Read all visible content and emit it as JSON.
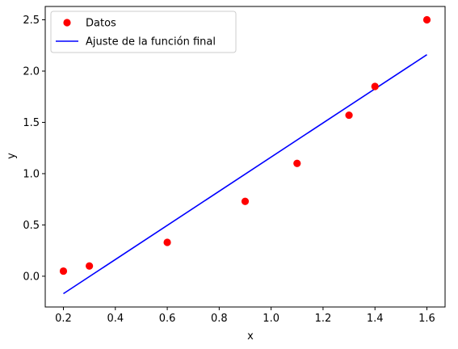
{
  "chart_data": {
    "type": "scatter",
    "xlabel": "x",
    "ylabel": "y",
    "xlim": [
      0.13,
      1.67
    ],
    "ylim": [
      -0.3,
      2.63
    ],
    "xticks": [
      0.2,
      0.4,
      0.6,
      0.8,
      1.0,
      1.2,
      1.4,
      1.6
    ],
    "xtick_labels": [
      "0.2",
      "0.4",
      "0.6",
      "0.8",
      "1.0",
      "1.2",
      "1.4",
      "1.6"
    ],
    "yticks": [
      0.0,
      0.5,
      1.0,
      1.5,
      2.0,
      2.5
    ],
    "ytick_labels": [
      "0.0",
      "0.5",
      "1.0",
      "1.5",
      "2.0",
      "2.5"
    ],
    "grid": false,
    "legend_position": "top-left",
    "series": [
      {
        "name": "Datos",
        "kind": "scatter",
        "color": "#ff0000",
        "x": [
          0.2,
          0.3,
          0.6,
          0.9,
          1.1,
          1.3,
          1.4,
          1.6
        ],
        "y": [
          0.05,
          0.1,
          0.33,
          0.73,
          1.1,
          1.57,
          1.85,
          2.5
        ]
      },
      {
        "name": "Ajuste de la función final",
        "kind": "line",
        "color": "#0000ff",
        "x": [
          0.2,
          1.6
        ],
        "y": [
          -0.17,
          2.16
        ]
      }
    ]
  }
}
